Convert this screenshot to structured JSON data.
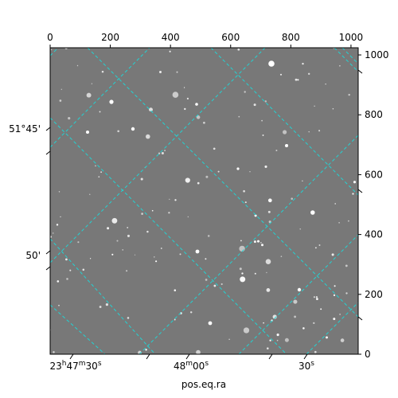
{
  "chart_data": {
    "type": "image",
    "xlabel": "pos.eq.ra",
    "ylabel": "",
    "pixel_axes": {
      "x_ticks": [
        0,
        200,
        400,
        600,
        800,
        1000
      ],
      "y_ticks": [
        0,
        200,
        400,
        600,
        800,
        1000
      ],
      "xlim": [
        0,
        1024
      ],
      "ylim": [
        0,
        1024
      ]
    },
    "ra_ticks": [
      {
        "label": "23h47m30s",
        "h": "23",
        "m": "47",
        "s": "30",
        "bottom_x": 80
      },
      {
        "label": "48m00s",
        "m": "48",
        "s": "00",
        "bottom_x": 470
      },
      {
        "label": "30s",
        "s": "30",
        "bottom_x": 870
      }
    ],
    "dec_ticks": [
      {
        "label": "51°45'",
        "deg": "51",
        "min": "45",
        "left_y": 335
      },
      {
        "label": "50'",
        "min": "50",
        "left_y": 1004
      }
    ],
    "grid_color": "#22d3d3",
    "background_color": "#787878",
    "grid": true
  }
}
